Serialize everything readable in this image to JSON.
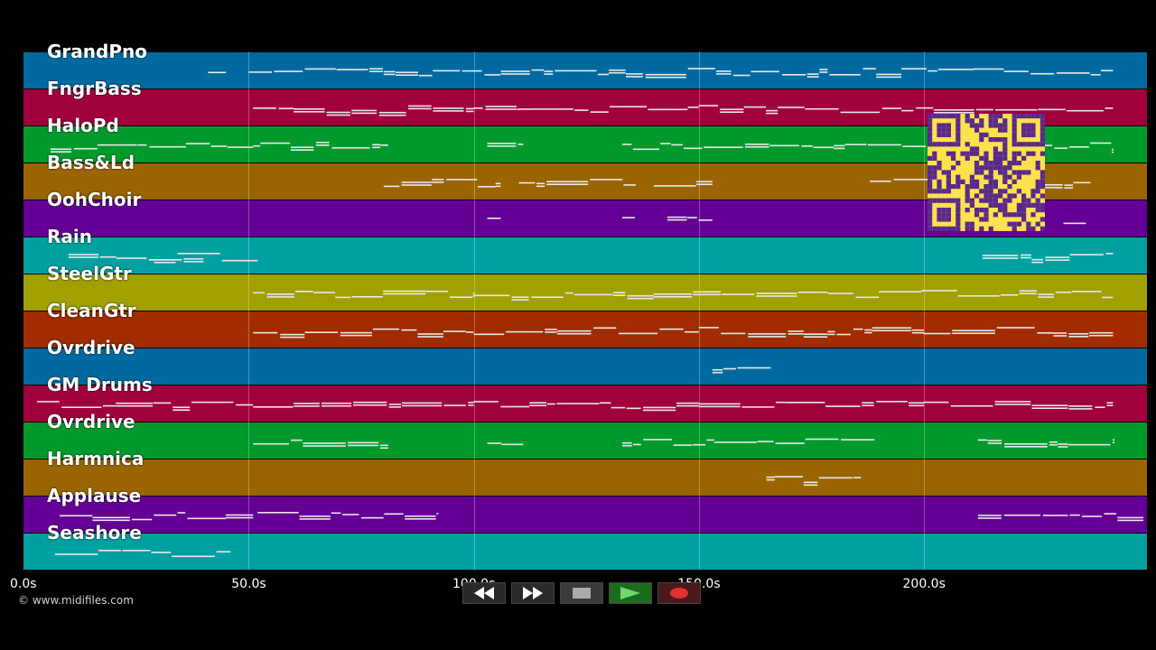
{
  "tracks": [
    {
      "name": "GrandPno",
      "color": "#006aa0"
    },
    {
      "name": "FngrBass",
      "color": "#a0003c"
    },
    {
      "name": "HaloPd",
      "color": "#009a2c"
    },
    {
      "name": "Bass&Ld",
      "color": "#9a6400"
    },
    {
      "name": "OohChoir",
      "color": "#640096"
    },
    {
      "name": "Rain",
      "color": "#00a0a0"
    },
    {
      "name": "SteelGtr",
      "color": "#a0a000"
    },
    {
      "name": "CleanGtr",
      "color": "#a02c00"
    },
    {
      "name": "Ovrdrive",
      "color": "#006aa0"
    },
    {
      "name": "GM Drums",
      "color": "#a0003c"
    },
    {
      "name": "Ovrdrive",
      "color": "#009a2c"
    },
    {
      "name": "Harmnica",
      "color": "#9a6400"
    },
    {
      "name": "Applause",
      "color": "#640096"
    },
    {
      "name": "Seashore",
      "color": "#00a0a0"
    }
  ],
  "axis": {
    "ticks": [
      "0.0s",
      "50.0s",
      "100.0s",
      "150.0s",
      "200.0s"
    ],
    "tick_seconds": [
      0,
      50,
      100,
      150,
      200
    ],
    "range_seconds": [
      0,
      250
    ]
  },
  "copyright": "© www.midifiles.com",
  "transport": {
    "rewind_icon": "rewind-icon",
    "forward_icon": "fast-forward-icon",
    "stop_icon": "stop-icon",
    "play_icon": "play-icon",
    "record_icon": "record-icon"
  },
  "note_segments": [
    [
      [
        41,
        45
      ],
      [
        50,
        80
      ],
      [
        80,
        130
      ],
      [
        130,
        195
      ],
      [
        195,
        242
      ]
    ],
    [
      [
        51,
        60
      ],
      [
        60,
        100
      ],
      [
        100,
        150
      ],
      [
        150,
        195
      ],
      [
        195,
        242
      ]
    ],
    [
      [
        6,
        51
      ],
      [
        51,
        81
      ],
      [
        103,
        111
      ],
      [
        133,
        180
      ],
      [
        180,
        242
      ]
    ],
    [
      [
        80,
        106
      ],
      [
        110,
        136
      ],
      [
        140,
        153
      ],
      [
        188,
        237
      ]
    ],
    [
      [
        103,
        106
      ],
      [
        133,
        136
      ],
      [
        143,
        153
      ],
      [
        231,
        236
      ]
    ],
    [
      [
        10,
        40
      ],
      [
        29,
        52
      ],
      [
        213,
        242
      ]
    ],
    [
      [
        51,
        100
      ],
      [
        100,
        140
      ],
      [
        140,
        190
      ],
      [
        190,
        242
      ]
    ],
    [
      [
        51,
        100
      ],
      [
        100,
        150
      ],
      [
        150,
        200
      ],
      [
        200,
        242
      ]
    ],
    [
      [
        153,
        166
      ]
    ],
    [
      [
        3,
        51
      ],
      [
        51,
        100
      ],
      [
        100,
        150
      ],
      [
        150,
        200
      ],
      [
        200,
        242
      ]
    ],
    [
      [
        51,
        81
      ],
      [
        103,
        111
      ],
      [
        133,
        189
      ],
      [
        212,
        242
      ]
    ],
    [
      [
        165,
        186
      ]
    ],
    [
      [
        8,
        51
      ],
      [
        52,
        92
      ],
      [
        212,
        249
      ]
    ],
    [
      [
        7,
        46
      ]
    ]
  ]
}
